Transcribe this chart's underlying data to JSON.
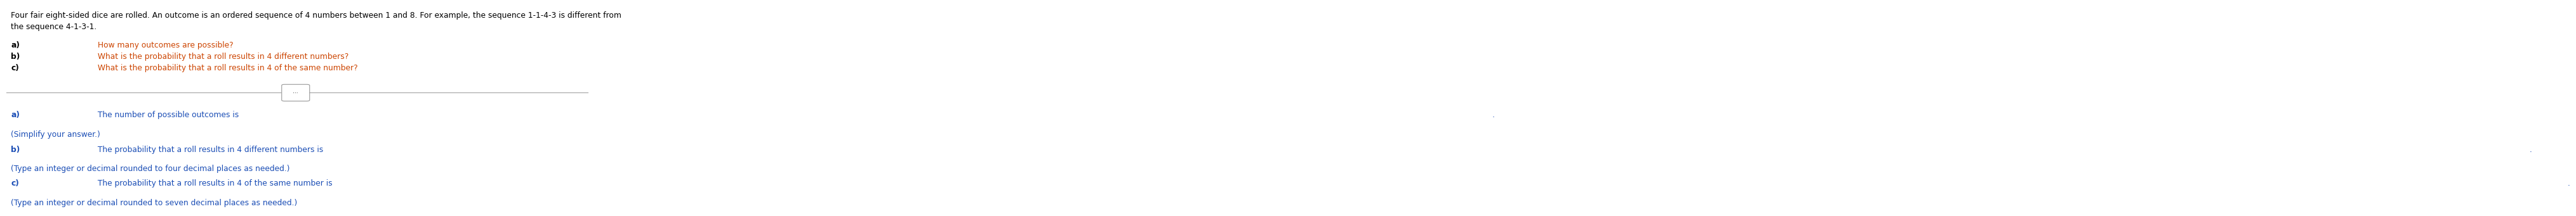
{
  "bg_color": "#ffffff",
  "text_color_black": "#000000",
  "text_color_blue": "#1a4db5",
  "text_color_orange": "#cc4400",
  "line_color": "#999999",
  "intro_line1": "Four fair eight-sided dice are rolled. An outcome is an ordered sequence of 4 numbers between 1 and 8. For example, the sequence 1-1-4-3 is different from",
  "intro_line2": "the sequence 4-1-3-1.",
  "q_a_label": "a)",
  "q_a_text": " How many outcomes are possible?",
  "q_b_label": "b)",
  "q_b_text": " What is the probability that a roll results in 4 different numbers?",
  "q_c_label": "c)",
  "q_c_text": " What is the probability that a roll results in 4 of the same number?",
  "ans_a_label": "a)",
  "ans_a_text": " The number of possible outcomes is ",
  "ans_a_hint": "(Simplify your answer.)",
  "ans_b_label": "b)",
  "ans_b_text": " The probability that a roll results in 4 different numbers is ",
  "ans_b_hint": "(Type an integer or decimal rounded to four decimal places as needed.)",
  "ans_c_label": "c)",
  "ans_c_text": " The probability that a roll results in 4 of the same number is ",
  "ans_c_hint": "(Type an integer or decimal rounded to seven decimal places as needed.)",
  "dots_label": "...",
  "font_size_intro": 8.8,
  "font_size_q": 8.8,
  "font_size_ans": 8.8,
  "font_size_hint": 8.8
}
